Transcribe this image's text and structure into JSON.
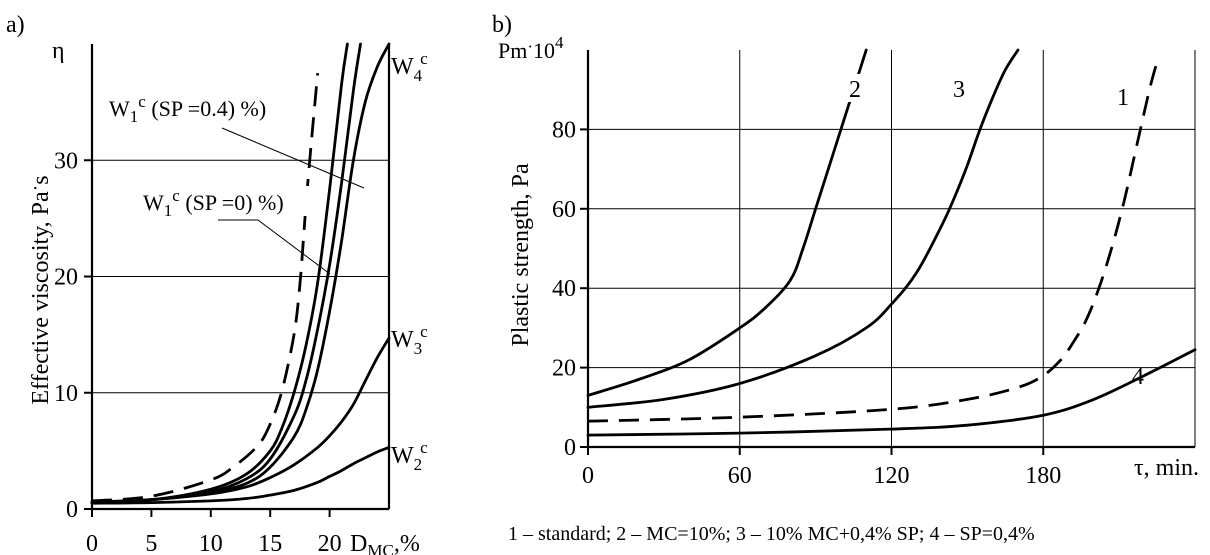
{
  "chart_data": [
    {
      "type": "line",
      "panel_label": "a)",
      "ylabel": "Effective viscosity, Pa",
      "ylabel_suffix": "·",
      "ylabel_unit": "s",
      "y_symbol": "η",
      "xlabel_main": "D",
      "xlabel_sub": "MC",
      "xlabel_unit": ",%",
      "xlim": [
        0,
        25
      ],
      "ylim": [
        0,
        40
      ],
      "x_ticks": [
        0,
        5,
        10,
        15,
        20
      ],
      "y_ticks": [
        0,
        10,
        20,
        30
      ],
      "grid": "horizontal",
      "series": [
        {
          "name": "W4",
          "sup": "c",
          "dashed": false,
          "x": [
            0,
            5,
            10,
            13,
            15,
            17,
            18,
            19,
            20,
            21,
            22,
            23,
            24,
            25
          ],
          "y": [
            0.6,
            0.8,
            1.4,
            2.2,
            3.6,
            6.2,
            8.5,
            12,
            17,
            23,
            30,
            35,
            38,
            40
          ]
        },
        {
          "name": "W4",
          "sup": "c",
          "dashed": false,
          "x": [
            0,
            5,
            10,
            13,
            15,
            17,
            18,
            19,
            20,
            21,
            22,
            22.6
          ],
          "y": [
            0.6,
            0.8,
            1.5,
            2.6,
            4.3,
            8,
            11,
            15.5,
            21,
            28,
            36,
            40
          ]
        },
        {
          "name": "W1 (SP =0.4) %",
          "sup": "c",
          "dashed": false,
          "x": [
            0,
            5,
            10,
            13,
            15,
            16,
            17,
            18,
            19,
            20,
            21,
            21.5
          ],
          "y": [
            0.6,
            0.8,
            1.7,
            3.0,
            5.0,
            7.0,
            10,
            14,
            19.5,
            27.5,
            36.5,
            40
          ]
        },
        {
          "name": "W1 (SP =0) %",
          "sup": "c",
          "dashed": true,
          "x": [
            0,
            5,
            10,
            12,
            14,
            15,
            16,
            17,
            17.5,
            18,
            18.5,
            19
          ],
          "y": [
            0.7,
            1.1,
            2.5,
            3.7,
            5.5,
            7.3,
            10.2,
            15,
            19.3,
            26,
            32,
            37.5
          ]
        },
        {
          "name": "W3",
          "sup": "c",
          "dashed": false,
          "x": [
            0,
            5,
            10,
            13,
            15,
            17,
            19,
            20,
            21,
            22,
            23,
            24,
            25
          ],
          "y": [
            0.6,
            0.8,
            1.3,
            1.9,
            2.7,
            3.8,
            5.3,
            6.3,
            7.5,
            9.0,
            11.0,
            13.0,
            14.7
          ]
        },
        {
          "name": "W2",
          "sup": "c",
          "dashed": false,
          "x": [
            0,
            5,
            10,
            13,
            15,
            17,
            19,
            20,
            21,
            22,
            23,
            24,
            25
          ],
          "y": [
            0.5,
            0.55,
            0.7,
            0.9,
            1.2,
            1.6,
            2.3,
            2.8,
            3.3,
            3.9,
            4.4,
            4.9,
            5.3
          ]
        }
      ],
      "annotations": {
        "w4": {
          "main": "W",
          "sub": "4",
          "sup": "c"
        },
        "w3": {
          "main": "W",
          "sub": "3",
          "sup": "c"
        },
        "w2": {
          "main": "W",
          "sub": "2",
          "sup": "c"
        },
        "w1_sp04": {
          "main": "W",
          "sub": "1",
          "sup": "c",
          "rest": " (SP =0.4) %)"
        },
        "w1_sp0": {
          "main": "W",
          "sub": "1",
          "sup": "c",
          "rest": " (SP =0) %)"
        }
      }
    },
    {
      "type": "line",
      "panel_label": "b)",
      "ylabel": "Plastic strength, Pa",
      "y_symbol_main": "Pm",
      "y_symbol_dot": "·",
      "y_symbol_pow": "10",
      "y_symbol_exp": "4",
      "xlabel": "τ, min.",
      "xlim": [
        0,
        240
      ],
      "ylim": [
        0,
        100
      ],
      "x_ticks": [
        0,
        60,
        120,
        180
      ],
      "y_ticks": [
        0,
        20,
        40,
        60,
        80
      ],
      "grid": "both",
      "series": [
        {
          "name": "2",
          "dashed": false,
          "x": [
            0,
            20,
            40,
            60,
            70,
            80,
            85,
            90,
            95,
            100,
            105,
            110
          ],
          "y": [
            13,
            17,
            22,
            30,
            35,
            42,
            50,
            60,
            70,
            80,
            90,
            100
          ]
        },
        {
          "name": "3",
          "dashed": false,
          "x": [
            0,
            30,
            60,
            90,
            110,
            120,
            130,
            140,
            145,
            150,
            155,
            160,
            165,
            170
          ],
          "y": [
            10,
            12,
            16,
            23,
            30,
            36,
            44,
            56,
            63,
            71,
            80,
            88,
            95,
            100
          ]
        },
        {
          "name": "1",
          "dashed": true,
          "x": [
            0,
            60,
            120,
            150,
            170,
            180,
            187,
            192,
            197,
            202,
            207,
            212,
            217,
            222,
            225
          ],
          "y": [
            6.5,
            7.5,
            9.5,
            12,
            15,
            18,
            22,
            26.5,
            32,
            40,
            50,
            62,
            76,
            90,
            97
          ]
        },
        {
          "name": "4",
          "dashed": false,
          "x": [
            0,
            60,
            120,
            150,
            180,
            200,
            220,
            240
          ],
          "y": [
            3,
            3.5,
            4.5,
            5.5,
            8,
            12,
            18,
            24.5
          ]
        }
      ],
      "legend_text": "1 – standard; 2 – MC=10%; 3 – 10% MC+0,4% SP; 4 – SP=0,4%"
    }
  ]
}
